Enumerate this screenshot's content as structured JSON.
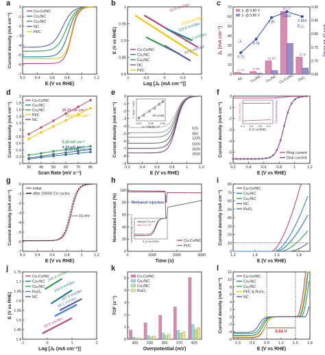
{
  "colors": {
    "cuco": "#b04a7a",
    "co1": "#1f7a8c",
    "co2": "#2e9e4f",
    "nc": "#555a9e",
    "ptc": "#f2c400",
    "ruo2": "#3a7bd5",
    "ring": "#d94a8c",
    "disk": "#7a3b8a"
  },
  "chart_data": [
    {
      "id": "a",
      "type": "line",
      "xlabel": "E (V vs RHE)",
      "ylabel": "Current density (mA cm⁻²)",
      "xlim": [
        0.2,
        1.2
      ],
      "ylim": [
        -7,
        0
      ],
      "xticks": [
        0.2,
        0.4,
        0.6,
        0.8,
        1.0,
        1.2
      ],
      "yticks": [
        0,
        -1,
        -2,
        -3,
        -4,
        -5,
        -6,
        -7
      ],
      "legend": [
        "Cu-Co/NC",
        "Co₁/NC",
        "Cu₁/NC",
        "NC",
        "Pt/C"
      ]
    },
    {
      "id": "b",
      "type": "line",
      "xlabel": "Log [Jₖ (mA cm⁻²)]",
      "ylabel": "E (V vs RHE)",
      "xlim": [
        -1,
        1
      ],
      "ylim": [
        0.8,
        1.0
      ],
      "xticks": [
        -1.0,
        -0.5,
        0.0,
        0.5,
        1.0
      ],
      "yticks": [
        0.8,
        0.85,
        0.9,
        0.95,
        1.0
      ],
      "legend": [
        "Cu-Co/NC",
        "Co₁/NC",
        "Cu₁/NC",
        "NC",
        "Pt/C"
      ],
      "annotations": [
        "63.6 mV/dec",
        "129.8 mV/dec",
        "119.5 mV/dec",
        "127.3 mV/dec",
        "84.9 mV/dec"
      ]
    },
    {
      "id": "c",
      "type": "bar",
      "categories": [
        "NC",
        "Cu₁/NC",
        "Co₁/NC",
        "Cu-Co/NC",
        "Pt/C"
      ],
      "series": [
        {
          "name": "Jₖ @ 0.80 V",
          "values": [
            1.74,
            2.79,
            13.83,
            65.27,
            17.8
          ]
        },
        {
          "name": "Jₖ @ 0.85 V",
          "values": [
            0.55,
            0.89,
            3.73,
            32.05,
            6.35
          ]
        }
      ],
      "e12": [
        0.73,
        0.78,
        0.86,
        0.882,
        0.864
      ],
      "e12_labels": [
        "0.73",
        "0.78",
        "0.86",
        "0.882",
        "0.864"
      ],
      "ylabel": "Jₖ (mA cm⁻²)",
      "y2label": "E₁/₂ (V vs RHE)",
      "ylim": [
        0,
        70
      ],
      "y2lim": [
        0.65,
        0.9
      ],
      "arrow_labels": [
        "Jₖ",
        "E₁/₂"
      ]
    },
    {
      "id": "d",
      "type": "scatter",
      "xlabel": "Scan Rate (mV s⁻¹)",
      "ylabel": "Current density (mA cm⁻²)",
      "x": [
        30,
        40,
        50,
        60,
        70,
        80
      ],
      "xlim": [
        25,
        85
      ],
      "ylim": [
        0,
        2.0
      ],
      "xticks": [
        30,
        40,
        50,
        60,
        70,
        80
      ],
      "yticks": [
        0.0,
        0.2,
        0.4,
        0.6,
        0.8,
        1.0,
        1.2,
        1.4,
        1.6,
        1.8,
        2.0
      ],
      "series": [
        {
          "name": "Cu-Co/NC",
          "values": [
            0.87,
            1.07,
            1.27,
            1.48,
            1.68,
            1.88
          ],
          "label": "20.33 mF cm⁻²"
        },
        {
          "name": "Cu₁/NC",
          "values": [
            0.13,
            0.18,
            0.22,
            0.26,
            0.3,
            0.34
          ],
          "label": "2.35 mF cm⁻²"
        },
        {
          "name": "Co₁/NC",
          "values": [
            0.25,
            0.3,
            0.36,
            0.41,
            0.46,
            0.51
          ],
          "label": "5.25 mF cm⁻²"
        },
        {
          "name": "Pt/C",
          "values": [
            0.73,
            0.92,
            1.1,
            1.28,
            1.46,
            1.64
          ],
          "label": "18.17 mF cm⁻²"
        },
        {
          "name": "NC",
          "values": [
            0.16,
            0.21,
            0.27,
            0.32,
            0.37,
            0.42
          ],
          "label": "4.34 mF cm⁻²"
        }
      ]
    },
    {
      "id": "e",
      "type": "line",
      "xlabel": "E (V vs RHE)",
      "ylabel": "Current density (mA cm⁻²)",
      "xlim": [
        0.2,
        1.2
      ],
      "ylim": [
        -9,
        0
      ],
      "legend": [
        "625",
        "900",
        "1225",
        "1600",
        "2025",
        "2500"
      ],
      "limits": [
        -4.2,
        -4.9,
        -5.5,
        -6.3,
        -7.0,
        -7.6
      ],
      "inset": {
        "xlabel": "ω⁻¹/²(rpm)⁻¹/²",
        "ylabel": "J⁻¹(mA⁻¹ cm²)",
        "r2": "R²=0.99",
        "x": [
          0.02,
          0.024,
          0.029,
          0.033,
          0.037,
          0.04
        ],
        "y": [
          0.13,
          0.14,
          0.155,
          0.165,
          0.18,
          0.19
        ],
        "xticks": [
          0.02,
          0.03,
          0.04
        ]
      }
    },
    {
      "id": "f",
      "type": "line",
      "xlabel": "E (V vs RHE)",
      "ylabel": "Current density (mA cm⁻²)",
      "xlim": [
        0.2,
        1.2
      ],
      "ylim": [
        -6,
        0
      ],
      "legend": [
        "Ring current",
        "Disk current"
      ],
      "inset": {
        "xlabel": "E (V vs RHE)",
        "ylabel": "H₂O₂ Yield (%)",
        "y2label": "Electron transfer (n)",
        "xticks": [
          0.2,
          0.4,
          0.6,
          0.8
        ]
      }
    },
    {
      "id": "g",
      "type": "line",
      "xlabel": "E (V vs RHE)",
      "ylabel": "Current density (mA cm⁻²)",
      "xlim": [
        0.2,
        1.2
      ],
      "ylim": [
        -7,
        0
      ],
      "legend": [
        "initial",
        "after 20000 CV cycles"
      ],
      "annotation": "15 mV"
    },
    {
      "id": "h",
      "type": "line",
      "xlabel": "Time (s)",
      "ylabel": "Normalized current (%)",
      "xlim": [
        0,
        3000
      ],
      "ylim": [
        0,
        110
      ],
      "xticks": [
        0,
        1000,
        2000,
        3000
      ],
      "yticks": [
        0,
        20,
        40,
        60,
        80,
        100
      ],
      "legend": [
        "Cu-Co/NC",
        "Pt/C"
      ],
      "annotation": "Methanol injection",
      "inset": {
        "xlabel": "E (V vs RHE)",
        "ylabel": "Current density (mA cm⁻²)",
        "legend": [
          "without CH₃OH",
          "with CH₃OH"
        ]
      }
    },
    {
      "id": "i",
      "type": "line",
      "xlabel": "E (V vs RHE)",
      "ylabel": "Current density (mA cm⁻²)",
      "xlim": [
        1.2,
        1.9
      ],
      "ylim": [
        0,
        80
      ],
      "xticks": [
        1.2,
        1.4,
        1.6,
        1.8
      ],
      "yticks": [
        0,
        10,
        20,
        30,
        40,
        50,
        60,
        70,
        80
      ],
      "legend": [
        "Cu-Co/NC",
        "Co₁/NC",
        "Cu₁/NC",
        "NC",
        "RuO₂"
      ]
    },
    {
      "id": "j",
      "type": "line",
      "xlabel": "Log [Jₖ (mA cm⁻²)]",
      "ylabel": "E (V vs RHE)",
      "xlim": [
        -1,
        2
      ],
      "ylim": [
        1.4,
        1.75
      ],
      "xticks": [
        -1,
        0,
        1,
        2
      ],
      "yticks": [
        1.4,
        1.45,
        1.5,
        1.55,
        1.6,
        1.65,
        1.7,
        1.75
      ],
      "legend": [
        "Cu-Co/NC",
        "Co₁/NC",
        "Cu₁/NC",
        "RuO₂",
        "NC"
      ],
      "annotations": [
        "245.8 mV/dec",
        "154.9 mV/dec",
        "107.6 mV/dec",
        "99.1 mV/dec",
        "83.8 mV/dec"
      ]
    },
    {
      "id": "k",
      "type": "bar",
      "xlabel": "Overpotential (mV)",
      "ylabel": "TOF (s⁻¹)",
      "categories": [
        "300",
        "330",
        "350",
        "370",
        "425"
      ],
      "ylim": [
        0,
        5.5
      ],
      "yticks": [
        0,
        1,
        2,
        3,
        4,
        5
      ],
      "series": [
        {
          "name": "Cu-Co/NC",
          "values": [
            0.75,
            1.35,
            1.95,
            2.65,
            5.05
          ]
        },
        {
          "name": "Co₁/NC",
          "values": [
            0.15,
            0.3,
            0.5,
            0.72,
            1.2
          ]
        },
        {
          "name": "Cu₁/NC",
          "values": [
            0.08,
            0.18,
            0.3,
            0.48,
            0.8
          ]
        },
        {
          "name": "RuO₂",
          "values": [
            0.12,
            0.25,
            0.4,
            0.6,
            0.95
          ]
        }
      ]
    },
    {
      "id": "l",
      "type": "line",
      "xlabel": "E (V vs RHE)",
      "ylabel": "Current density (mA cm⁻²)",
      "xlim": [
        0.2,
        1.8
      ],
      "ylim": [
        -6,
        12
      ],
      "xticks": [
        0.3,
        0.6,
        0.9,
        1.2,
        1.5,
        1.8
      ],
      "yticks": [
        -6,
        -4,
        -2,
        0,
        2,
        4,
        6,
        8,
        10,
        12
      ],
      "legend": [
        "Cu-Co/NC",
        "Co₁/NC",
        "Cu₁/NC",
        "Pt/C & RuO₂",
        "NC"
      ],
      "annotation": "0.64 V",
      "vlines": [
        0.9,
        1.5
      ]
    }
  ]
}
